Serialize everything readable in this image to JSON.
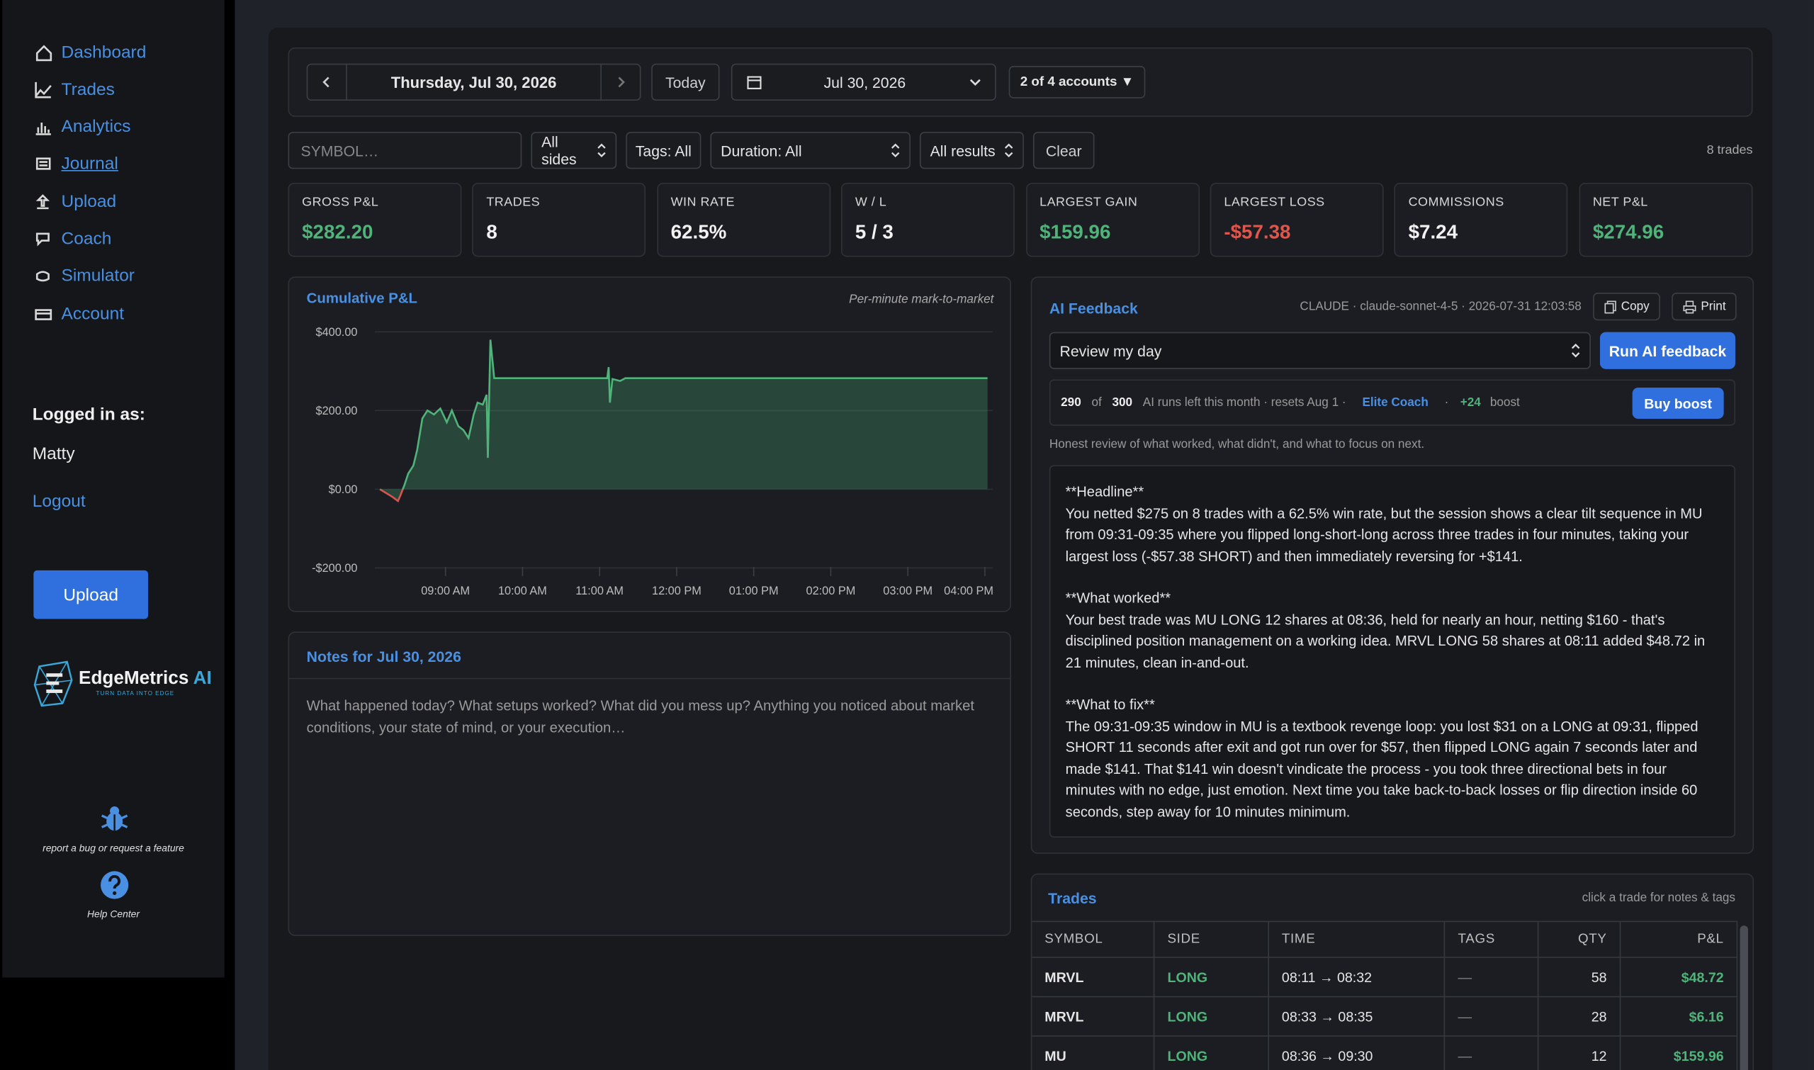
{
  "sidebar": {
    "nav": [
      "Dashboard",
      "Trades",
      "Analytics",
      "Journal",
      "Upload",
      "Coach",
      "Simulator",
      "Account"
    ],
    "logged_in_label": "Logged in as:",
    "user": "Matty",
    "logout": "Logout",
    "upload_button": "Upload",
    "logo": {
      "name": "EdgeMetrics",
      "suffix": "AI",
      "tagline": "TURN DATA INTO EDGE"
    },
    "bug_report": "report a bug or request a feature",
    "help": "Help Center"
  },
  "toolbar": {
    "date": "Thursday, Jul 30, 2026",
    "today": "Today",
    "picker": "Jul 30, 2026",
    "accounts": "2 of 4 accounts ▼"
  },
  "filters": {
    "symbol_placeholder": "SYMBOL…",
    "sides": "All sides",
    "tags": "Tags: All",
    "duration": "Duration: All",
    "results": "All results",
    "clear": "Clear",
    "count": "8 trades"
  },
  "stats": [
    {
      "label": "GROSS P&L",
      "value": "$282.20",
      "color": "#4fb37a"
    },
    {
      "label": "TRADES",
      "value": "8",
      "color": "#f2f2f2"
    },
    {
      "label": "WIN RATE",
      "value": "62.5%",
      "color": "#f2f2f2"
    },
    {
      "label": "W / L",
      "value": "5 / 3",
      "color": "#f2f2f2"
    },
    {
      "label": "LARGEST GAIN",
      "value": "$159.96",
      "color": "#4fb37a"
    },
    {
      "label": "LARGEST LOSS",
      "value": "-$57.38",
      "color": "#e0564c"
    },
    {
      "label": "COMMISSIONS",
      "value": "$7.24",
      "color": "#f2f2f2"
    },
    {
      "label": "NET P&L",
      "value": "$274.96",
      "color": "#4fb37a"
    }
  ],
  "chart_data": {
    "type": "line",
    "title": "Cumulative P&L",
    "subtitle": "Per-minute mark-to-market",
    "x": [
      489,
      494,
      499,
      503,
      505,
      508,
      511,
      515,
      518,
      522,
      526,
      531,
      536,
      541,
      545,
      550,
      554,
      558,
      562,
      565,
      569,
      572,
      573,
      575,
      578,
      666,
      667,
      668,
      670,
      676,
      680,
      962
    ],
    "values": [
      0,
      -10,
      -20,
      -30,
      -15,
      10,
      40,
      60,
      100,
      180,
      200,
      190,
      205,
      170,
      200,
      160,
      150,
      130,
      190,
      220,
      215,
      240,
      80,
      380,
      282,
      282,
      310,
      220,
      280,
      275,
      282,
      282
    ],
    "color": "#4fb37a",
    "negative_color": "#d9534f",
    "xlim": [
      485,
      966
    ],
    "xticks": [
      {
        "value": 540,
        "label": "09:00 AM"
      },
      {
        "value": 600,
        "label": "10:00 AM"
      },
      {
        "value": 660,
        "label": "11:00 AM"
      },
      {
        "value": 720,
        "label": "12:00 PM"
      },
      {
        "value": 780,
        "label": "01:00 PM"
      },
      {
        "value": 840,
        "label": "02:00 PM"
      },
      {
        "value": 900,
        "label": "03:00 PM"
      },
      {
        "value": 960,
        "label": "04:00 PM"
      }
    ],
    "ylim": [
      -215,
      420
    ],
    "yticks": [
      {
        "value": -200,
        "label": "-$200.00"
      },
      {
        "value": 0,
        "label": "$0.00"
      },
      {
        "value": 200,
        "label": "$200.00"
      },
      {
        "value": 400,
        "label": "$400.00"
      }
    ],
    "grid": true
  },
  "notes": {
    "title": "Notes for Jul 30, 2026",
    "placeholder": "What happened today? What setups worked? What did you mess up? Anything you noticed about market conditions, your state of mind, or your execution…"
  },
  "ai_feedback": {
    "title": "AI Feedback",
    "meta": "CLAUDE · claude-sonnet-4-5 · 2026-07-31 12:03:58",
    "copy": "Copy",
    "print": "Print",
    "mode": "Review my day",
    "run": "Run AI feedback",
    "usage": {
      "left": "290",
      "of": "of",
      "total": "300",
      "text": "AI runs left this month · resets Aug 1 ·",
      "plan": "Elite Coach",
      "sep": "·",
      "boost_amount": "+24",
      "boost": "boost",
      "buy": "Buy boost"
    },
    "description": "Honest review of what worked, what didn't, and what to focus on next.",
    "paragraphs": [
      {
        "heading": "**Headline**",
        "body": "You netted $275 on 8 trades with a 62.5% win rate, but the session shows a clear tilt sequence in MU from 09:31-09:35 where you flipped long-short-long across three trades in four minutes, taking your largest loss (-$57.38 SHORT) and then immediately reversing for +$141."
      },
      {
        "heading": "**What worked**",
        "body": "Your best trade was MU LONG 12 shares at 08:36, held for nearly an hour, netting $160 - that's disciplined position management on a working idea. MRVL LONG 58 shares at 08:11 added $48.72 in 21 minutes, clean in-and-out."
      },
      {
        "heading": "**What to fix**",
        "body": "The 09:31-09:35 window in MU is a textbook revenge loop: you lost $31 on a LONG at 09:31, flipped SHORT 11 seconds after exit and got run over for $57, then flipped LONG again 7 seconds later and made $141. That $141 win doesn't vindicate the process - you took three directional bets in four minutes with no edge, just emotion. Next time you take back-to-back losses or flip direction inside 60 seconds, step away for 10 minutes minimum."
      }
    ]
  },
  "trades": {
    "title": "Trades",
    "hint": "click a trade for notes & tags",
    "headers": [
      "SYMBOL",
      "SIDE",
      "TIME",
      "TAGS",
      "QTY",
      "P&L"
    ],
    "rows": [
      [
        "MRVL",
        "LONG",
        "08:11 → 08:32",
        "—",
        58,
        "$48.72"
      ],
      [
        "MRVL",
        "LONG",
        "08:33 → 08:35",
        "—",
        28,
        "$6.16"
      ],
      [
        "MU",
        "LONG",
        "08:36 → 09:30",
        "—",
        12,
        "$159.96"
      ]
    ]
  }
}
